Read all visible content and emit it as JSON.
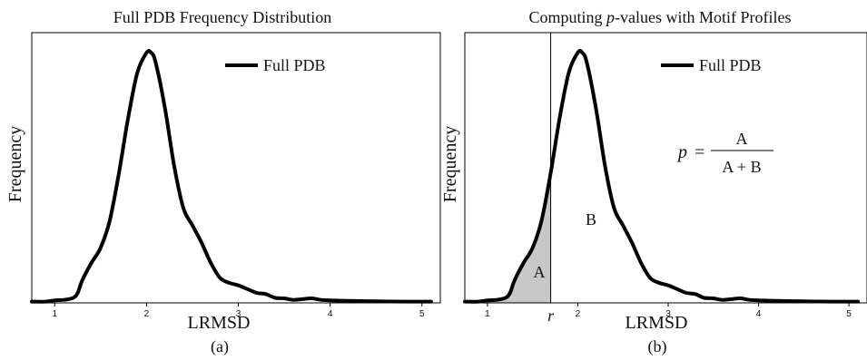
{
  "chart_data": [
    {
      "type": "line",
      "title": "Full PDB Frequency Distribution",
      "xlabel": "LRMSD",
      "ylabel": "Frequency",
      "caption": "(a)",
      "xlim": [
        0.75,
        5.2
      ],
      "ylim": [
        0,
        1.08
      ],
      "xticks": [
        "1",
        "2",
        "3",
        "4",
        "5"
      ],
      "legend": "top-right",
      "grid": false,
      "series": [
        {
          "name": "Full PDB",
          "color": "#000000",
          "x": [
            0.75,
            0.9,
            1.0,
            1.1,
            1.2,
            1.25,
            1.3,
            1.4,
            1.5,
            1.6,
            1.7,
            1.8,
            1.9,
            2.0,
            2.05,
            2.1,
            2.2,
            2.3,
            2.4,
            2.5,
            2.6,
            2.7,
            2.8,
            2.9,
            3.0,
            3.1,
            3.2,
            3.3,
            3.4,
            3.5,
            3.6,
            3.7,
            3.8,
            3.9,
            4.0,
            4.2,
            4.5,
            4.8,
            5.0,
            5.1
          ],
          "y": [
            0.005,
            0.005,
            0.01,
            0.012,
            0.02,
            0.04,
            0.09,
            0.16,
            0.22,
            0.33,
            0.52,
            0.74,
            0.92,
            1.0,
            1.0,
            0.96,
            0.78,
            0.55,
            0.38,
            0.31,
            0.24,
            0.16,
            0.1,
            0.08,
            0.07,
            0.055,
            0.04,
            0.035,
            0.02,
            0.018,
            0.012,
            0.015,
            0.018,
            0.012,
            0.01,
            0.008,
            0.006,
            0.005,
            0.005,
            0.005
          ]
        }
      ]
    },
    {
      "type": "line",
      "title_prefix": "Computing ",
      "title_italic": "p",
      "title_suffix": "-values with Motif Profiles",
      "xlabel": "LRMSD",
      "ylabel": "Frequency",
      "caption": "(b)",
      "xlim": [
        0.75,
        5.2
      ],
      "ylim": [
        0,
        1.08
      ],
      "xticks": [
        "1",
        "2",
        "3",
        "4",
        "5"
      ],
      "legend": "top-right",
      "grid": false,
      "threshold_x": 1.7,
      "threshold_label": "r",
      "region_a_label": "A",
      "region_b_label": "B",
      "formula": {
        "lhs": "p",
        "equals": "=",
        "numerator": "A",
        "denominator": "A + B"
      },
      "series": [
        {
          "name": "Full PDB",
          "color": "#000000",
          "x": [
            0.75,
            0.9,
            1.0,
            1.1,
            1.2,
            1.25,
            1.3,
            1.4,
            1.5,
            1.6,
            1.7,
            1.8,
            1.9,
            2.0,
            2.05,
            2.1,
            2.2,
            2.3,
            2.4,
            2.5,
            2.6,
            2.7,
            2.8,
            2.9,
            3.0,
            3.1,
            3.2,
            3.3,
            3.4,
            3.5,
            3.6,
            3.7,
            3.8,
            3.9,
            4.0,
            4.2,
            4.5,
            4.8,
            5.0,
            5.1
          ],
          "y": [
            0.005,
            0.005,
            0.01,
            0.012,
            0.02,
            0.04,
            0.09,
            0.16,
            0.22,
            0.33,
            0.52,
            0.74,
            0.92,
            1.0,
            1.0,
            0.96,
            0.78,
            0.55,
            0.38,
            0.31,
            0.24,
            0.16,
            0.1,
            0.08,
            0.07,
            0.055,
            0.04,
            0.035,
            0.02,
            0.018,
            0.012,
            0.015,
            0.018,
            0.012,
            0.01,
            0.008,
            0.006,
            0.005,
            0.005,
            0.005
          ],
          "shade_color": "#c8c8c8"
        }
      ]
    }
  ]
}
